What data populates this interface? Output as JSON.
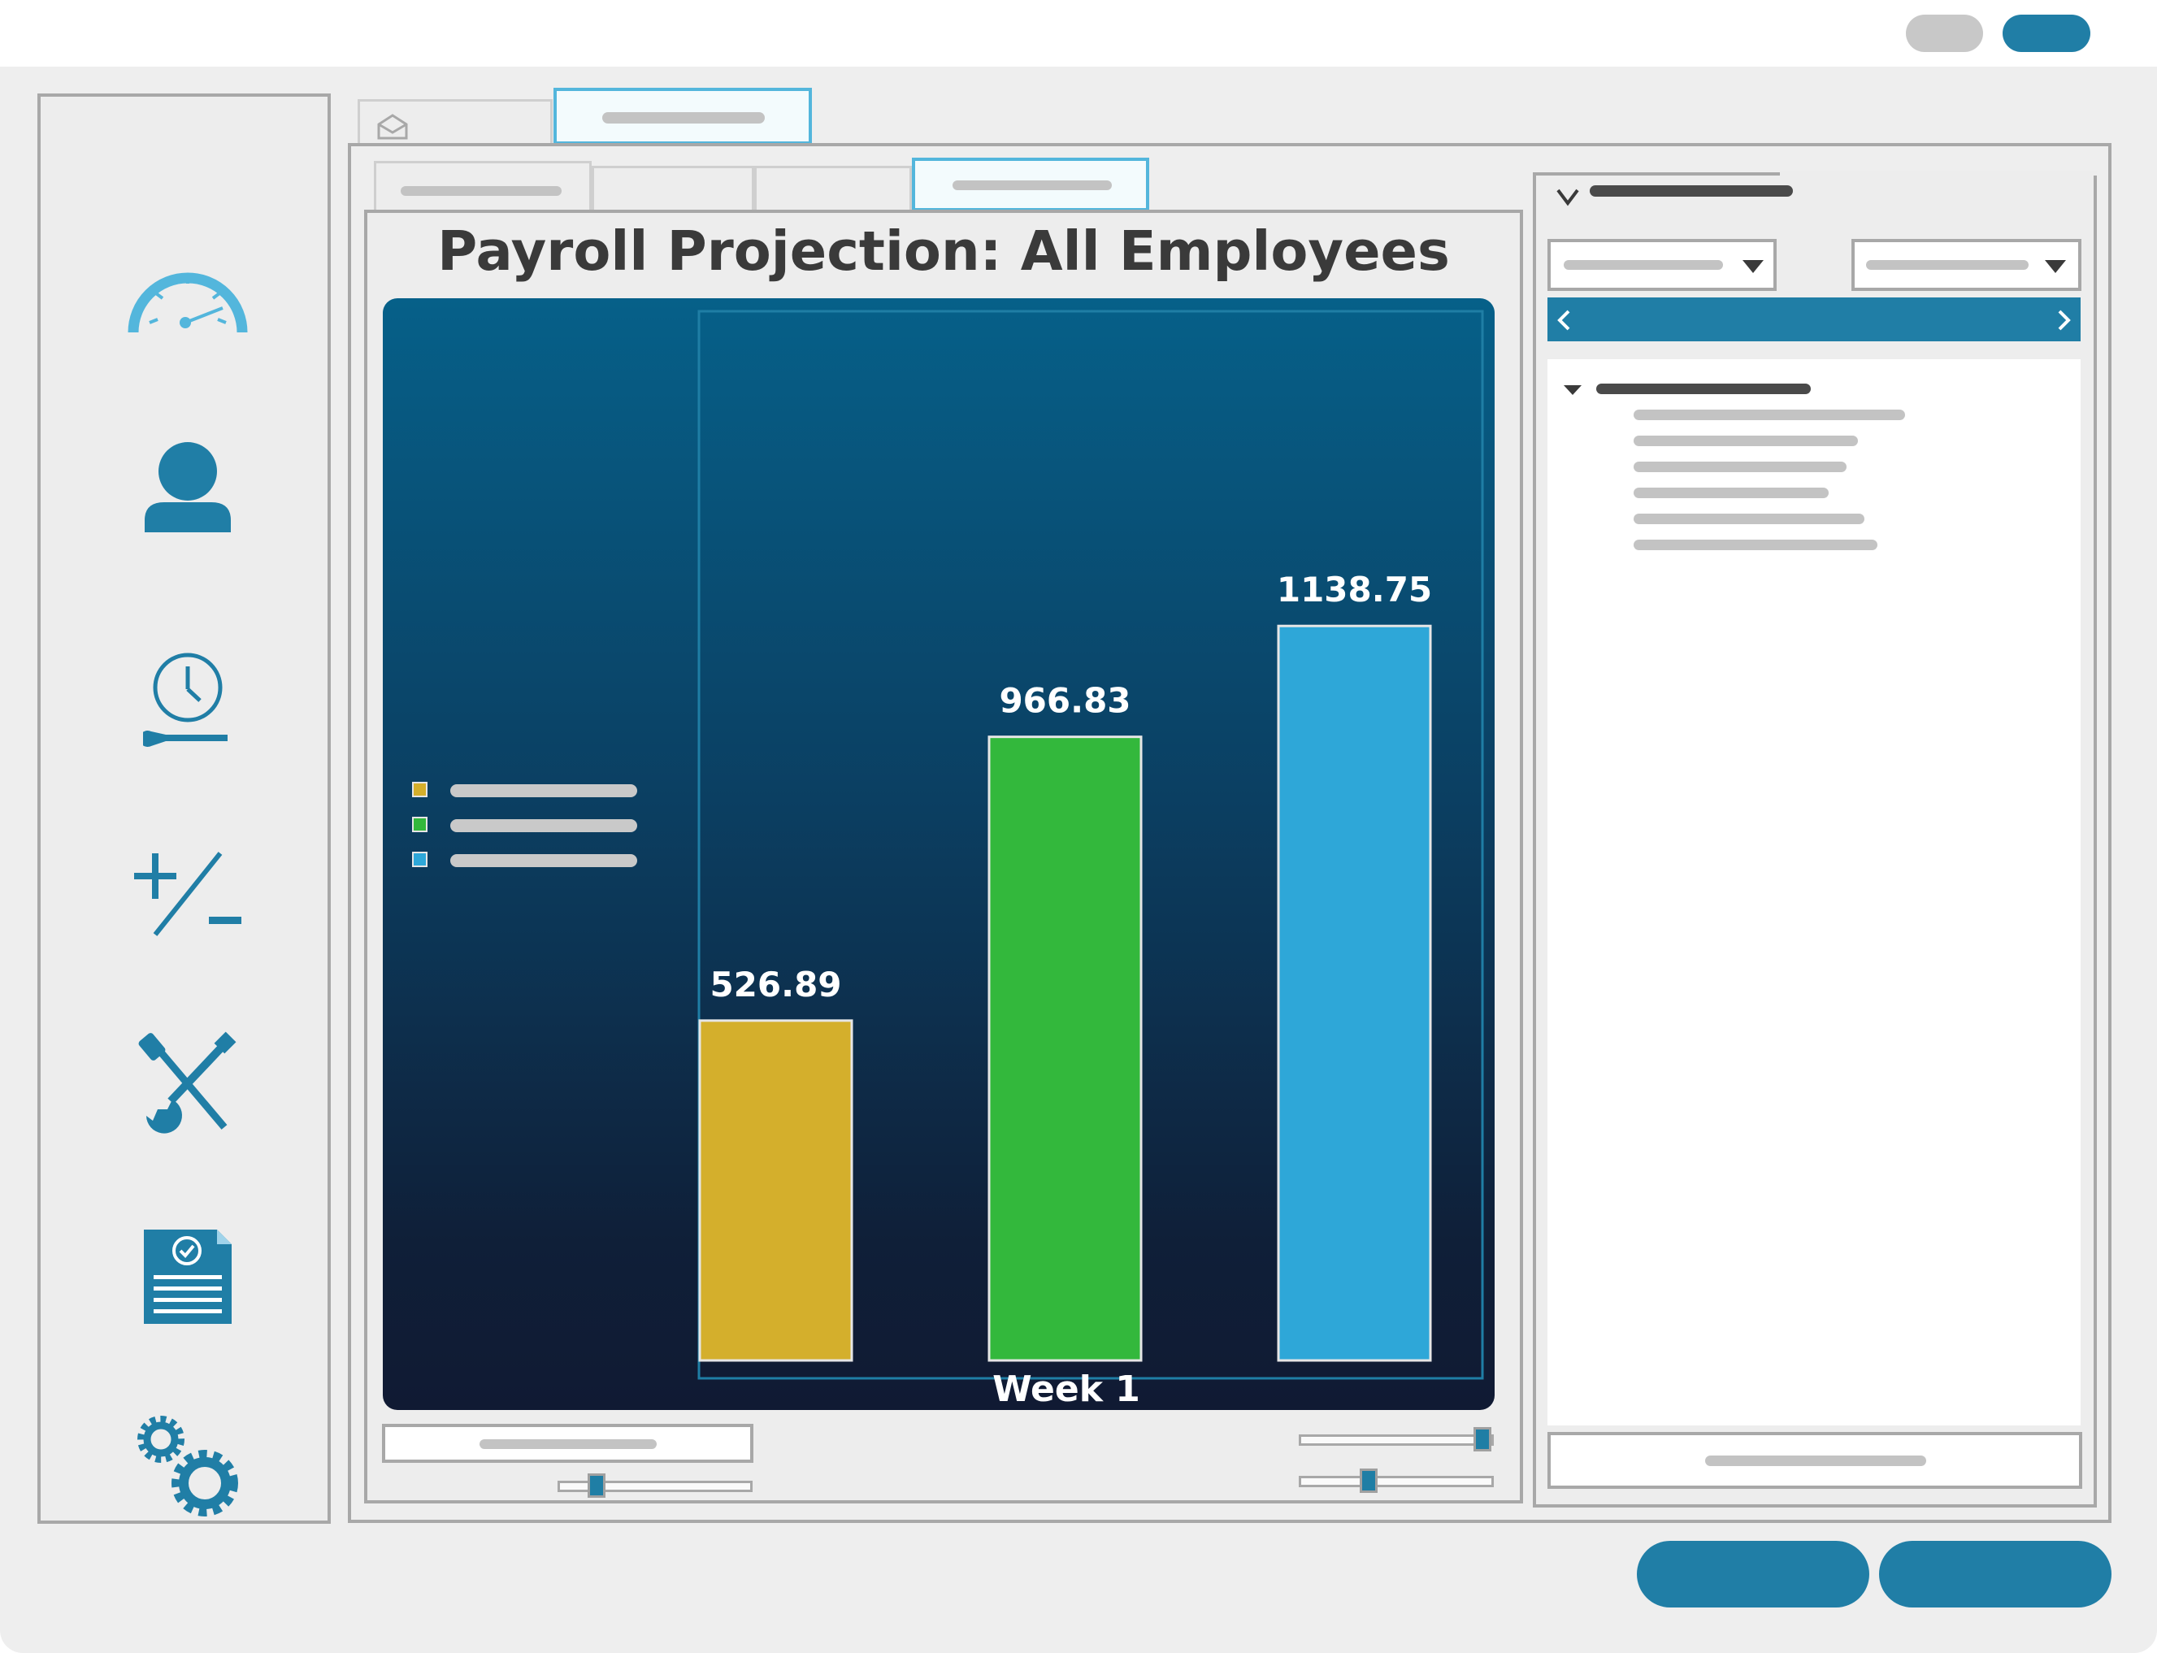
{
  "chart_title": "Payroll Projection: All Employees",
  "sidebar": {
    "items": [
      "speedometer-icon",
      "user-icon",
      "clock-wrench-icon",
      "plus-minus-icon",
      "tools-icon",
      "certificate-document-icon",
      "gears-icon"
    ]
  },
  "colors": {
    "accent": "#207ea6",
    "light_accent": "#53b6dc",
    "series1": "#d4af2c",
    "series2": "#33b83c",
    "series3": "#2ea7d8"
  },
  "chart_data": {
    "type": "bar",
    "categories": [
      "Week 1"
    ],
    "series": [
      {
        "values": [
          526.89
        ],
        "color": "#d4af2c"
      },
      {
        "values": [
          966.83
        ],
        "color": "#33b83c"
      },
      {
        "values": [
          1138.75
        ],
        "color": "#2ea7d8"
      }
    ],
    "value_labels": [
      "526.89",
      "966.83",
      "1138.75"
    ],
    "xlabel": "Week 1",
    "ylabel": "",
    "legend": "left",
    "grid": false
  }
}
